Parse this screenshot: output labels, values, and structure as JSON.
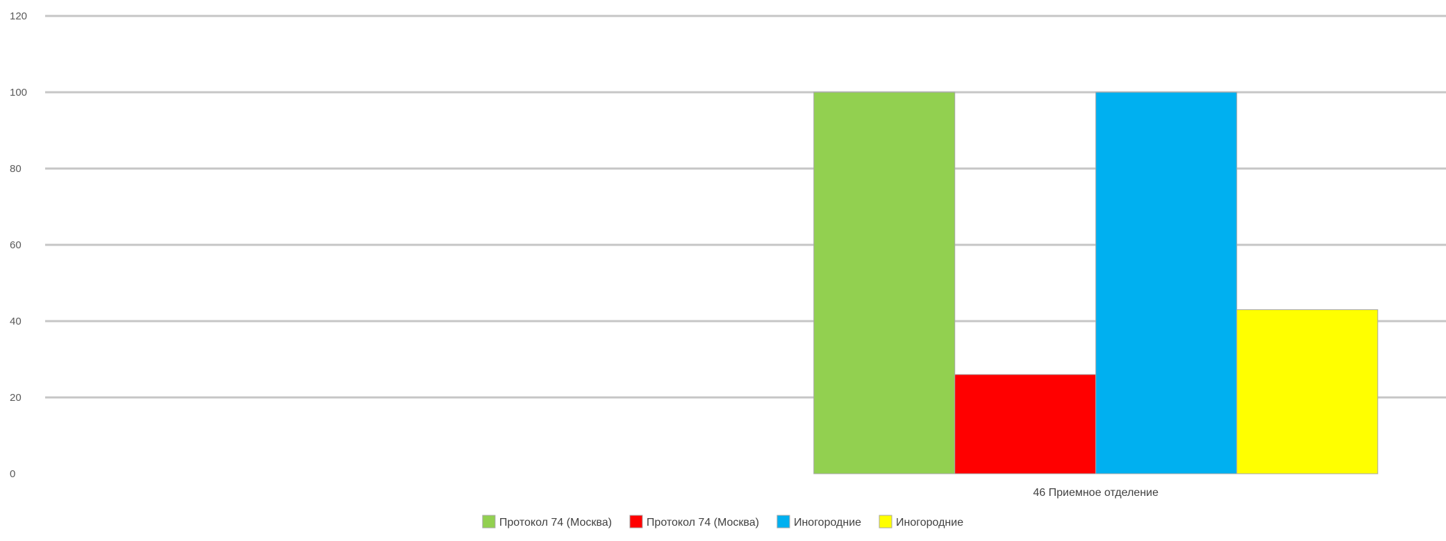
{
  "chart_data": {
    "type": "bar",
    "title": "",
    "xlabel": "",
    "ylabel": "",
    "ylim": [
      0,
      120
    ],
    "yticks": [
      0,
      20,
      40,
      60,
      80,
      100,
      120
    ],
    "grid": true,
    "legend_position": "bottom",
    "categories": [
      "",
      "46 Приемное отделение"
    ],
    "series": [
      {
        "name": "Протокол 74 (Москва)",
        "color": "#92D050",
        "values": [
          null,
          100
        ]
      },
      {
        "name": "Протокол 74 (Москва)",
        "color": "#FF0000",
        "values": [
          null,
          26
        ]
      },
      {
        "name": "Иногородние",
        "color": "#00B0F0",
        "values": [
          null,
          100
        ]
      },
      {
        "name": "Иногородние",
        "color": "#FFFF00",
        "values": [
          null,
          43
        ]
      }
    ]
  }
}
